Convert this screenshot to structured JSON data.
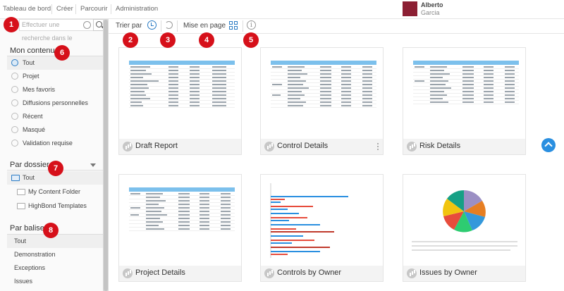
{
  "nav": {
    "items": [
      "Tableau de bord",
      "Créer",
      "Parcourir",
      "Administration"
    ]
  },
  "user": {
    "first_name": "Alberto",
    "last_name": "Garcia",
    "avatar_color": "#8c1f33"
  },
  "search": {
    "placeholder_line1": "Effectuer une",
    "placeholder_line2": "recherche dans le"
  },
  "sidebar": {
    "my_content": {
      "title": "Mon contenu",
      "items": [
        "Tout",
        "Projet",
        "Mes favoris",
        "Diffusions personnelles",
        "Récent",
        "Masqué",
        "Validation requise"
      ]
    },
    "by_folder": {
      "title": "Par dossier",
      "items": [
        "Tout",
        "My Content Folder",
        "HighBond Templates"
      ]
    },
    "by_tag": {
      "title": "Par balise",
      "items": [
        "Tout",
        "Demonstration",
        "Exceptions",
        "Issues"
      ]
    }
  },
  "toolbar": {
    "sort_label": "Trier par",
    "layout_label": "Mise en page"
  },
  "cards": [
    {
      "title": "Draft Report"
    },
    {
      "title": "Control Details"
    },
    {
      "title": "Risk Details"
    },
    {
      "title": "Project Details"
    },
    {
      "title": "Controls by Owner"
    },
    {
      "title": "Issues by Owner"
    }
  ],
  "badges": [
    "1",
    "2",
    "3",
    "4",
    "5",
    "6",
    "7",
    "8"
  ],
  "colors": {
    "accent": "#2a7bc4",
    "badge": "#d6101a",
    "table_header": "#7cc0ec"
  },
  "icons": {
    "search": "search-icon",
    "globe": "globe-icon",
    "sort": "clock-icon",
    "undo": "undo-icon",
    "layout": "grid-icon",
    "info": "info-icon",
    "scroll_top": "arrow-up-icon"
  }
}
